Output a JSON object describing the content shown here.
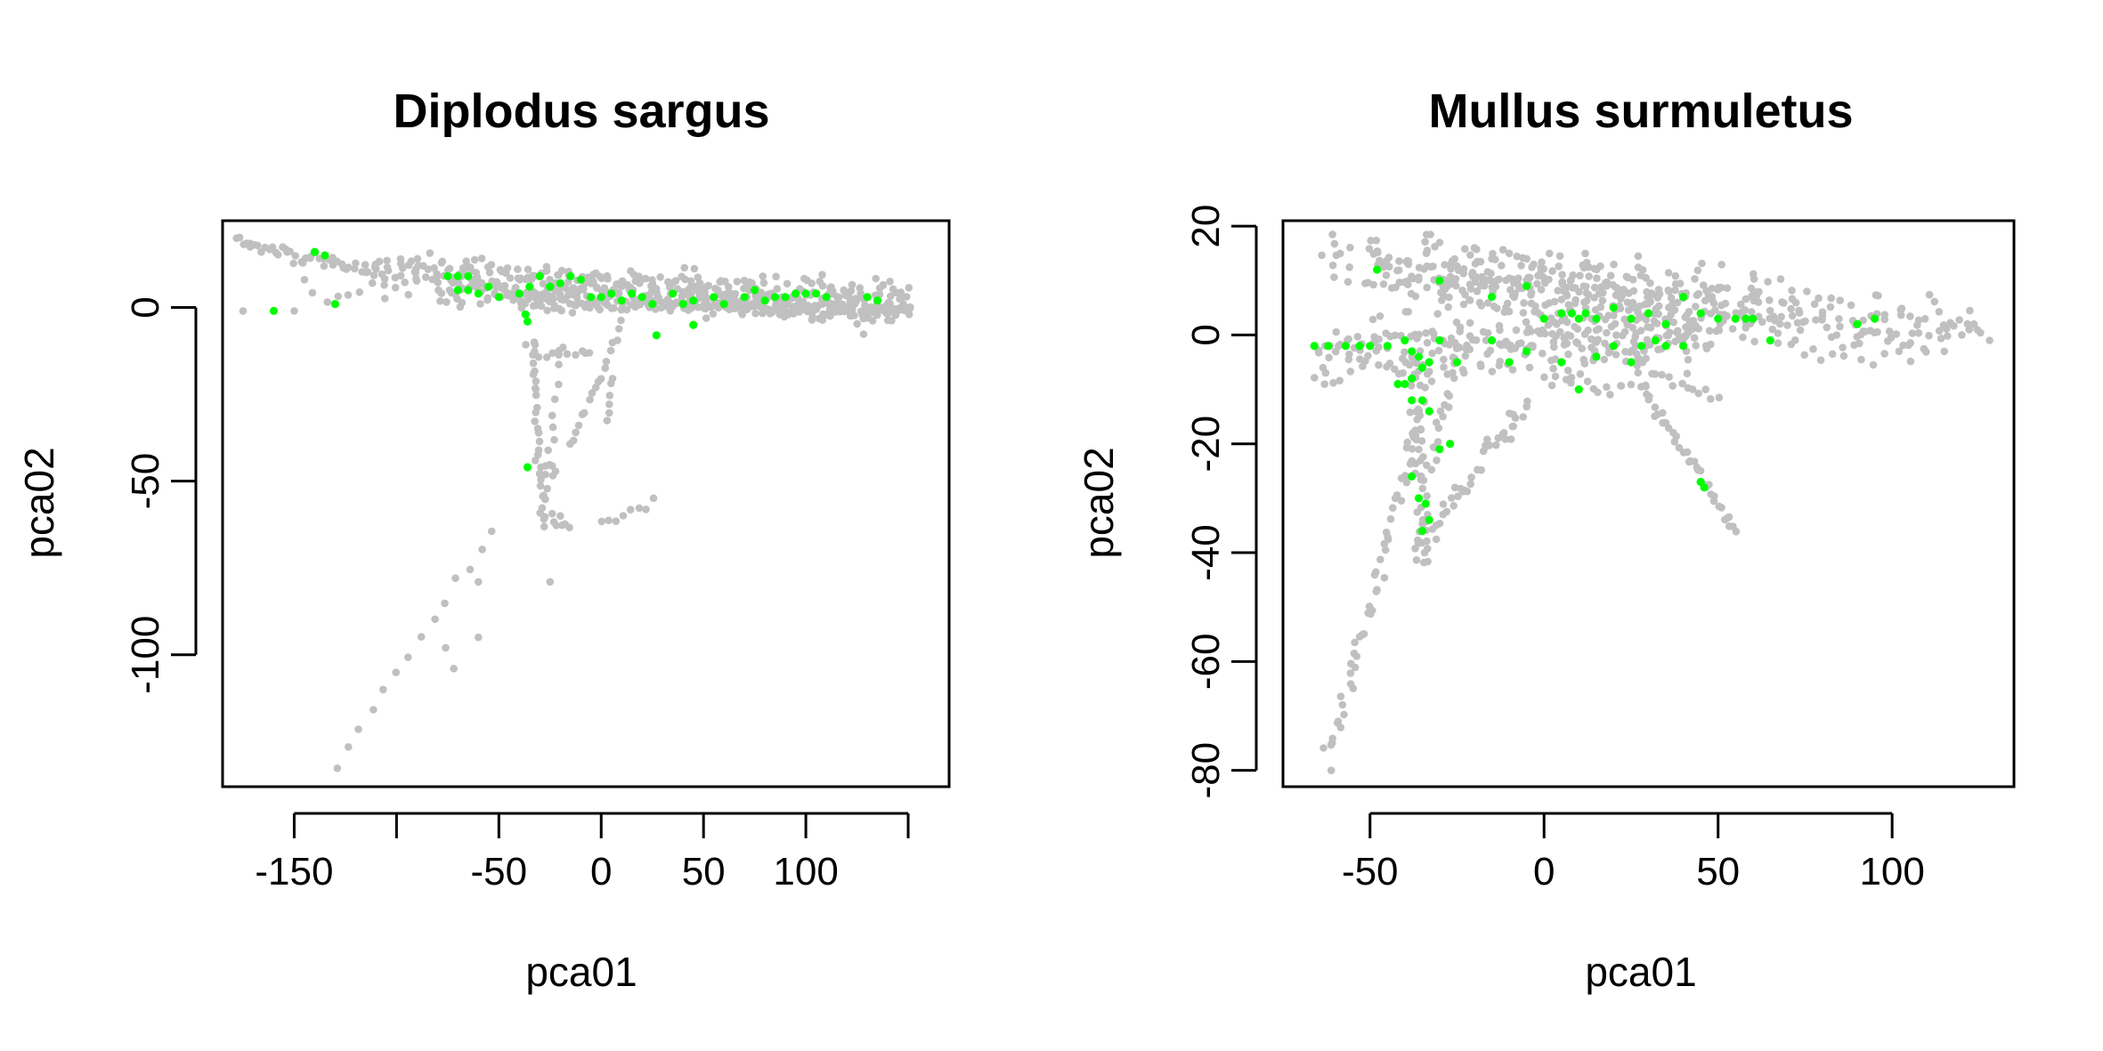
{
  "colors": {
    "background": "#c0c0c0",
    "highlight": "#00ff00",
    "axis": "#000000"
  },
  "chart_data": [
    {
      "type": "scatter",
      "title": "Diplodus sargus",
      "xlabel": "pca01",
      "ylabel": "pca02",
      "xlim": [
        -185,
        170
      ],
      "ylim": [
        -138,
        25
      ],
      "xticks": [
        {
          "value": -150,
          "label": "-150"
        },
        {
          "value": -100,
          "label": ""
        },
        {
          "value": -50,
          "label": "-50"
        },
        {
          "value": 0,
          "label": "0"
        },
        {
          "value": 50,
          "label": "50"
        },
        {
          "value": 100,
          "label": "100"
        },
        {
          "value": 150,
          "label": ""
        }
      ],
      "yticks": [
        {
          "value": 0,
          "label": "0"
        },
        {
          "value": -50,
          "label": "-50"
        },
        {
          "value": -100,
          "label": "-100"
        }
      ],
      "series": [
        {
          "role": "background",
          "color": "#c0c0c0",
          "segments": [
            {
              "from": [
                -178,
                19
              ],
              "to": [
                -110,
                10
              ],
              "n": 45,
              "spread": 1.0
            },
            {
              "from": [
                -110,
                11
              ],
              "to": [
                150,
                3
              ],
              "n": 260,
              "spread": 2.2
            },
            {
              "from": [
                -80,
                5
              ],
              "to": [
                150,
                -1
              ],
              "n": 240,
              "spread": 1.8
            },
            {
              "from": [
                -40,
                1
              ],
              "to": [
                150,
                -1
              ],
              "n": 120,
              "spread": 1.0
            },
            {
              "from": [
                -33,
                -10
              ],
              "to": [
                -30,
                -50
              ],
              "n": 22,
              "spread": 1.0
            },
            {
              "from": [
                -30,
                -50
              ],
              "to": [
                -28,
                -62
              ],
              "n": 8,
              "spread": 1.0
            },
            {
              "from": [
                -27,
                -45
              ],
              "to": [
                -22,
                -48
              ],
              "n": 5,
              "spread": 1.0
            },
            {
              "from": [
                -20,
                -12
              ],
              "to": [
                -28,
                -60
              ],
              "n": 12,
              "spread": 1.0
            },
            {
              "from": [
                -25,
                -60
              ],
              "to": [
                -15,
                -64
              ],
              "n": 6,
              "spread": 0.8
            },
            {
              "from": [
                -35,
                -12
              ],
              "to": [
                -5,
                -12
              ],
              "n": 12,
              "spread": 1.2
            },
            {
              "from": [
                10,
                -5
              ],
              "to": [
                -15,
                -40
              ],
              "n": 18,
              "spread": 1.0
            },
            {
              "from": [
                5,
                -20
              ],
              "to": [
                3,
                -32
              ],
              "n": 6,
              "spread": 0.8
            },
            {
              "from": [
                0,
                -63
              ],
              "to": [
                25,
                -56
              ],
              "n": 8,
              "spread": 0.6
            },
            {
              "from": [
                -53,
                -64
              ],
              "to": [
                -130,
                -132
              ],
              "n": 14,
              "spread": 1.0
            },
            {
              "from": [
                -140,
                2
              ],
              "to": [
                -90,
                7
              ],
              "n": 10,
              "spread": 1.5
            }
          ],
          "points": [
            [
              -175,
              -1
            ],
            [
              -150,
              -1
            ],
            [
              -60,
              -79
            ],
            [
              -60,
              -95
            ],
            [
              -76,
              -98
            ],
            [
              -72,
              -104
            ],
            [
              -25,
              -79
            ],
            [
              -145,
              8
            ],
            [
              -20,
              -60
            ]
          ]
        },
        {
          "role": "highlight",
          "color": "#00ff00",
          "points": [
            [
              -140,
              16
            ],
            [
              -135,
              15
            ],
            [
              -160,
              -1
            ],
            [
              -130,
              1
            ],
            [
              -75,
              9
            ],
            [
              -70,
              9
            ],
            [
              -65,
              9
            ],
            [
              -70,
              5
            ],
            [
              -65,
              5
            ],
            [
              -60,
              4
            ],
            [
              -55,
              6
            ],
            [
              -50,
              3
            ],
            [
              -40,
              4
            ],
            [
              -35,
              6
            ],
            [
              -30,
              9
            ],
            [
              -25,
              6
            ],
            [
              -20,
              7
            ],
            [
              -15,
              9
            ],
            [
              -10,
              8
            ],
            [
              -5,
              3
            ],
            [
              0,
              3
            ],
            [
              5,
              4
            ],
            [
              10,
              2
            ],
            [
              15,
              4
            ],
            [
              20,
              3
            ],
            [
              25,
              1
            ],
            [
              35,
              4
            ],
            [
              40,
              1
            ],
            [
              45,
              2
            ],
            [
              55,
              3
            ],
            [
              60,
              1
            ],
            [
              70,
              3
            ],
            [
              75,
              5
            ],
            [
              80,
              2
            ],
            [
              85,
              3
            ],
            [
              90,
              3
            ],
            [
              95,
              4
            ],
            [
              100,
              4
            ],
            [
              105,
              4
            ],
            [
              110,
              3
            ],
            [
              130,
              3
            ],
            [
              135,
              2
            ],
            [
              -37,
              -2
            ],
            [
              -36,
              -4
            ],
            [
              -36,
              -46
            ],
            [
              45,
              -5
            ],
            [
              27,
              -8
            ]
          ]
        }
      ]
    },
    {
      "type": "scatter",
      "title": "Mullus surmuletus",
      "xlabel": "pca01",
      "ylabel": "pca02",
      "xlim": [
        -75,
        135
      ],
      "ylim": [
        -83,
        21
      ],
      "xticks": [
        {
          "value": -50,
          "label": "-50"
        },
        {
          "value": 0,
          "label": "0"
        },
        {
          "value": 50,
          "label": "50"
        },
        {
          "value": 100,
          "label": "100"
        }
      ],
      "yticks": [
        {
          "value": 20,
          "label": "20"
        },
        {
          "value": 0,
          "label": "0"
        },
        {
          "value": -20,
          "label": "-20"
        },
        {
          "value": -40,
          "label": "-40"
        },
        {
          "value": -60,
          "label": "-60"
        },
        {
          "value": -80,
          "label": "-80"
        }
      ],
      "series": [
        {
          "role": "background",
          "color": "#c0c0c0",
          "segments": [
            {
              "from": [
                -63,
                14
              ],
              "to": [
                125,
                1
              ],
              "n": 200,
              "spread": 2.5
            },
            {
              "from": [
                -50,
                12
              ],
              "to": [
                70,
                4
              ],
              "n": 140,
              "spread": 3.5
            },
            {
              "from": [
                -35,
                9
              ],
              "to": [
                50,
                2
              ],
              "n": 140,
              "spread": 4.0
            },
            {
              "from": [
                -65,
                -2
              ],
              "to": [
                45,
                0
              ],
              "n": 120,
              "spread": 2.0
            },
            {
              "from": [
                -65,
                -6
              ],
              "to": [
                30,
                -3
              ],
              "n": 70,
              "spread": 1.5
            },
            {
              "from": [
                0,
                3
              ],
              "to": [
                110,
                0
              ],
              "n": 60,
              "spread": 2.0
            },
            {
              "from": [
                -33,
                -8
              ],
              "to": [
                -62,
                -79
              ],
              "n": 60,
              "spread": 1.2
            },
            {
              "from": [
                -5,
                -12
              ],
              "to": [
                -37,
                -40
              ],
              "n": 45,
              "spread": 1.5
            },
            {
              "from": [
                -38,
                -5
              ],
              "to": [
                -34,
                -40
              ],
              "n": 40,
              "spread": 1.5
            },
            {
              "from": [
                -25,
                -2
              ],
              "to": [
                -33,
                -25
              ],
              "n": 20,
              "spread": 1.2
            },
            {
              "from": [
                27,
                -8
              ],
              "to": [
                55,
                -36
              ],
              "n": 40,
              "spread": 0.8
            },
            {
              "from": [
                25,
                -4
              ],
              "to": [
                50,
                -12
              ],
              "n": 15,
              "spread": 0.8
            },
            {
              "from": [
                0,
                -8
              ],
              "to": [
                25,
                -10
              ],
              "n": 15,
              "spread": 1.0
            },
            {
              "from": [
                75,
                -4
              ],
              "to": [
                110,
                -3
              ],
              "n": 10,
              "spread": 0.8
            }
          ],
          "points": [
            [
              128,
              -1
            ],
            [
              120,
              0
            ],
            [
              115,
              -3
            ],
            [
              -30,
              17
            ],
            [
              -20,
              16
            ],
            [
              -15,
              14
            ],
            [
              -10,
              15
            ],
            [
              -5,
              14
            ]
          ]
        },
        {
          "role": "highlight",
          "color": "#00ff00",
          "points": [
            [
              -66,
              -2
            ],
            [
              -62,
              -2
            ],
            [
              -57,
              -2
            ],
            [
              -53,
              -2
            ],
            [
              -50,
              -2
            ],
            [
              -45,
              -2
            ],
            [
              -48,
              12
            ],
            [
              -30,
              10
            ],
            [
              -15,
              7
            ],
            [
              -5,
              9
            ],
            [
              0,
              3
            ],
            [
              5,
              4
            ],
            [
              8,
              4
            ],
            [
              10,
              3
            ],
            [
              12,
              4
            ],
            [
              15,
              3
            ],
            [
              20,
              5
            ],
            [
              25,
              3
            ],
            [
              30,
              4
            ],
            [
              35,
              2
            ],
            [
              40,
              7
            ],
            [
              45,
              4
            ],
            [
              50,
              3
            ],
            [
              55,
              3
            ],
            [
              58,
              3
            ],
            [
              60,
              3
            ],
            [
              90,
              2
            ],
            [
              95,
              3
            ],
            [
              -40,
              -1
            ],
            [
              -38,
              -3
            ],
            [
              -36,
              -4
            ],
            [
              -35,
              -6
            ],
            [
              -33,
              -5
            ],
            [
              -38,
              -8
            ],
            [
              -40,
              -9
            ],
            [
              -42,
              -9
            ],
            [
              -35,
              -12
            ],
            [
              -33,
              -14
            ],
            [
              -30,
              -21
            ],
            [
              -27,
              -20
            ],
            [
              -38,
              -26
            ],
            [
              -36,
              -30
            ],
            [
              -34,
              -31
            ],
            [
              -33,
              -34
            ],
            [
              -35,
              -36
            ],
            [
              -25,
              -5
            ],
            [
              -15,
              -1
            ],
            [
              -10,
              -5
            ],
            [
              -5,
              -3
            ],
            [
              5,
              -5
            ],
            [
              10,
              -10
            ],
            [
              15,
              -4
            ],
            [
              20,
              -2
            ],
            [
              25,
              -5
            ],
            [
              28,
              -2
            ],
            [
              32,
              -1
            ],
            [
              35,
              -2
            ],
            [
              40,
              -2
            ],
            [
              45,
              -27
            ],
            [
              46,
              -28
            ],
            [
              65,
              -1
            ],
            [
              -38,
              -12
            ],
            [
              -30,
              -1
            ]
          ]
        }
      ]
    }
  ]
}
